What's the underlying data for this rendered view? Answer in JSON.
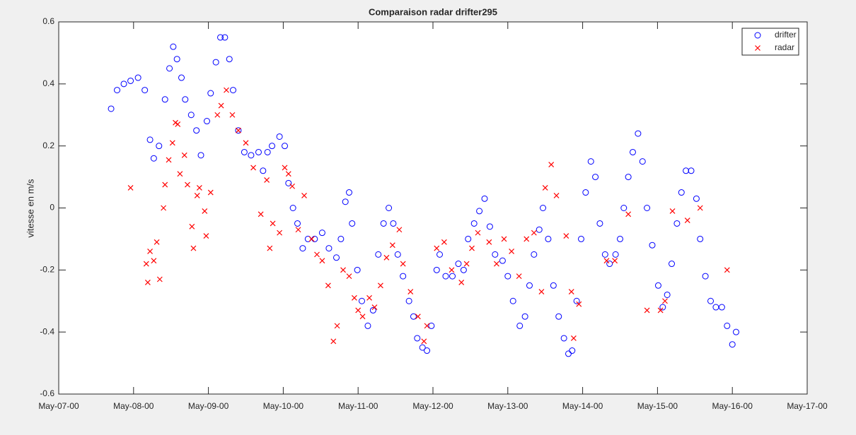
{
  "chart_data": {
    "type": "scatter",
    "title": "Comparaison radar drifter295",
    "y_label": "vitesse en m/s",
    "xlim": [
      0,
      10
    ],
    "xticks": [
      {
        "value": 0,
        "label": "May-07-00"
      },
      {
        "value": 1,
        "label": "May-08-00"
      },
      {
        "value": 2,
        "label": "May-09-00"
      },
      {
        "value": 3,
        "label": "May-10-00"
      },
      {
        "value": 4,
        "label": "May-11-00"
      },
      {
        "value": 5,
        "label": "May-12-00"
      },
      {
        "value": 6,
        "label": "May-13-00"
      },
      {
        "value": 7,
        "label": "May-14-00"
      },
      {
        "value": 8,
        "label": "May-15-00"
      },
      {
        "value": 9,
        "label": "May-16-00"
      },
      {
        "value": 10,
        "label": "May-17-00"
      }
    ],
    "ylim": [
      -0.6,
      0.6
    ],
    "yticks": [
      -0.6,
      -0.4,
      -0.2,
      0,
      0.2,
      0.4,
      0.6
    ],
    "grid": false,
    "legend": "northeast",
    "series": [
      {
        "name": "drifter",
        "color": "#0000ff",
        "marker": "o",
        "x": [
          0.7,
          0.78,
          0.87,
          0.96,
          1.06,
          1.15,
          1.22,
          1.27,
          1.34,
          1.42,
          1.48,
          1.53,
          1.58,
          1.64,
          1.69,
          1.77,
          1.84,
          1.9,
          1.98,
          2.03,
          2.1,
          2.16,
          2.22,
          2.28,
          2.33,
          2.4,
          2.48,
          2.57,
          2.67,
          2.73,
          2.79,
          2.85,
          2.95,
          3.02,
          3.07,
          3.13,
          3.19,
          3.26,
          3.33,
          3.42,
          3.52,
          3.61,
          3.71,
          3.77,
          3.83,
          3.88,
          3.92,
          3.99,
          4.05,
          4.13,
          4.2,
          4.27,
          4.34,
          4.41,
          4.47,
          4.53,
          4.6,
          4.68,
          4.74,
          4.79,
          4.86,
          4.92,
          4.98,
          5.05,
          5.09,
          5.17,
          5.26,
          5.34,
          5.41,
          5.47,
          5.55,
          5.62,
          5.69,
          5.76,
          5.83,
          5.93,
          6.0,
          6.07,
          6.16,
          6.23,
          6.29,
          6.35,
          6.42,
          6.47,
          6.54,
          6.61,
          6.68,
          6.75,
          6.81,
          6.86,
          6.92,
          6.98,
          7.04,
          7.11,
          7.17,
          7.23,
          7.3,
          7.36,
          7.44,
          7.5,
          7.55,
          7.61,
          7.67,
          7.74,
          7.8,
          7.86,
          7.93,
          8.01,
          8.07,
          8.13,
          8.19,
          8.26,
          8.32,
          8.38,
          8.45,
          8.52,
          8.57,
          8.64,
          8.71,
          8.78,
          8.86,
          8.93,
          9.0,
          9.05
        ],
        "values": [
          0.32,
          0.38,
          0.4,
          0.41,
          0.42,
          0.38,
          0.22,
          0.16,
          0.2,
          0.35,
          0.45,
          0.52,
          0.48,
          0.42,
          0.35,
          0.3,
          0.25,
          0.17,
          0.28,
          0.37,
          0.47,
          0.55,
          0.55,
          0.48,
          0.38,
          0.25,
          0.18,
          0.17,
          0.18,
          0.12,
          0.18,
          0.2,
          0.23,
          0.2,
          0.08,
          0.0,
          -0.05,
          -0.13,
          -0.1,
          -0.1,
          -0.08,
          -0.13,
          -0.16,
          -0.1,
          0.02,
          0.05,
          -0.05,
          -0.2,
          -0.3,
          -0.38,
          -0.33,
          -0.15,
          -0.05,
          0.0,
          -0.05,
          -0.15,
          -0.22,
          -0.3,
          -0.35,
          -0.42,
          -0.45,
          -0.46,
          -0.38,
          -0.2,
          -0.15,
          -0.22,
          -0.22,
          -0.18,
          -0.2,
          -0.1,
          -0.05,
          -0.01,
          0.03,
          -0.06,
          -0.15,
          -0.17,
          -0.22,
          -0.3,
          -0.38,
          -0.35,
          -0.25,
          -0.15,
          -0.07,
          0.0,
          -0.1,
          -0.25,
          -0.35,
          -0.42,
          -0.47,
          -0.46,
          -0.3,
          -0.1,
          0.05,
          0.15,
          0.1,
          -0.05,
          -0.15,
          -0.18,
          -0.15,
          -0.1,
          0.0,
          0.1,
          0.18,
          0.24,
          0.15,
          0.0,
          -0.12,
          -0.25,
          -0.32,
          -0.28,
          -0.18,
          -0.05,
          0.05,
          0.12,
          0.12,
          0.03,
          -0.1,
          -0.22,
          -0.3,
          -0.32,
          -0.32,
          -0.38,
          -0.44,
          -0.4
        ]
      },
      {
        "name": "radar",
        "color": "#ff0000",
        "marker": "x",
        "x": [
          0.96,
          1.17,
          1.19,
          1.22,
          1.27,
          1.31,
          1.35,
          1.4,
          1.42,
          1.47,
          1.52,
          1.56,
          1.59,
          1.62,
          1.68,
          1.72,
          1.78,
          1.8,
          1.85,
          1.88,
          1.95,
          1.97,
          2.03,
          2.12,
          2.17,
          2.24,
          2.32,
          2.4,
          2.5,
          2.6,
          2.7,
          2.78,
          2.82,
          2.86,
          2.95,
          3.02,
          3.07,
          3.12,
          3.2,
          3.28,
          3.38,
          3.45,
          3.52,
          3.6,
          3.67,
          3.72,
          3.8,
          3.88,
          3.95,
          4.0,
          4.06,
          4.15,
          4.22,
          4.3,
          4.38,
          4.46,
          4.55,
          4.6,
          4.7,
          4.8,
          4.88,
          4.92,
          5.05,
          5.15,
          5.25,
          5.38,
          5.45,
          5.52,
          5.6,
          5.75,
          5.85,
          5.95,
          6.05,
          6.15,
          6.25,
          6.35,
          6.45,
          6.5,
          6.58,
          6.65,
          6.78,
          6.85,
          6.88,
          6.95,
          7.32,
          7.43,
          7.61,
          7.86,
          8.04,
          8.1,
          8.2,
          8.4,
          8.57,
          8.93
        ],
        "values": [
          0.065,
          -0.18,
          -0.24,
          -0.14,
          -0.17,
          -0.11,
          -0.23,
          0.0,
          0.075,
          0.155,
          0.21,
          0.275,
          0.27,
          0.11,
          0.17,
          0.075,
          -0.06,
          -0.13,
          0.04,
          0.065,
          -0.01,
          -0.09,
          0.05,
          0.3,
          0.33,
          0.38,
          0.3,
          0.25,
          0.21,
          0.13,
          -0.02,
          0.09,
          -0.13,
          -0.05,
          -0.08,
          0.13,
          0.11,
          0.07,
          -0.07,
          0.04,
          -0.1,
          -0.15,
          -0.17,
          -0.25,
          -0.43,
          -0.38,
          -0.2,
          -0.22,
          -0.29,
          -0.33,
          -0.35,
          -0.29,
          -0.32,
          -0.25,
          -0.16,
          -0.12,
          -0.07,
          -0.18,
          -0.27,
          -0.35,
          -0.43,
          -0.38,
          -0.13,
          -0.11,
          -0.2,
          -0.24,
          -0.18,
          -0.13,
          -0.08,
          -0.11,
          -0.18,
          -0.1,
          -0.14,
          -0.22,
          -0.1,
          -0.08,
          -0.27,
          0.065,
          0.14,
          0.04,
          -0.09,
          -0.27,
          -0.42,
          -0.31,
          -0.17,
          -0.17,
          -0.02,
          -0.33,
          -0.33,
          -0.3,
          -0.01,
          -0.04,
          0.0,
          -0.2
        ]
      }
    ]
  }
}
